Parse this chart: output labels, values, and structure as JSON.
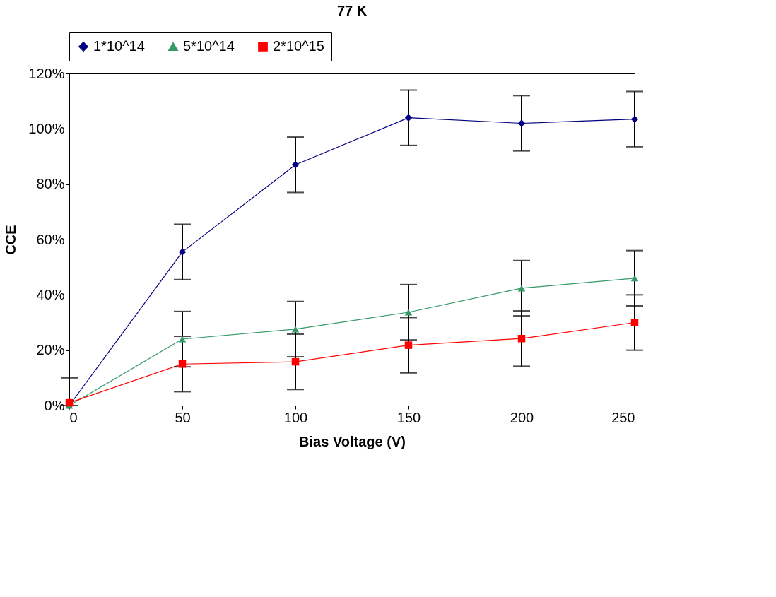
{
  "chart_data": {
    "type": "line",
    "title": "77 K",
    "xlabel": "Bias Voltage (V)",
    "ylabel": "CCE",
    "x": [
      0,
      50,
      100,
      150,
      200,
      250
    ],
    "series": [
      {
        "name": "1*10^14",
        "color": "#000080",
        "marker": "diamond",
        "values": [
          0,
          55.5,
          87,
          104,
          102,
          103.5
        ],
        "errors": [
          [
            0,
            10
          ],
          10,
          10,
          10,
          10,
          10
        ]
      },
      {
        "name": "5*10^14",
        "color": "#339966",
        "marker": "triangle",
        "values": [
          0,
          24,
          27.6,
          33.7,
          42.4,
          46
        ],
        "errors": [
          null,
          10,
          10,
          10,
          10,
          10
        ]
      },
      {
        "name": "2*10^15",
        "color": "#ff0000",
        "marker": "square",
        "values": [
          1,
          15,
          15.8,
          21.8,
          24.2,
          30
        ],
        "errors": [
          null,
          10,
          10,
          10,
          10,
          10
        ]
      }
    ],
    "xlim": [
      0,
      250
    ],
    "xticks": [
      0,
      50,
      100,
      150,
      200,
      250
    ],
    "ylim": [
      0,
      120
    ],
    "yticks": [
      {
        "value": 0,
        "label": "0%"
      },
      {
        "value": 20,
        "label": "20%"
      },
      {
        "value": 40,
        "label": "40%"
      },
      {
        "value": 60,
        "label": "60%"
      },
      {
        "value": 80,
        "label": "80%"
      },
      {
        "value": 100,
        "label": "100%"
      },
      {
        "value": 120,
        "label": "120%"
      }
    ],
    "grid": false,
    "legend": "top",
    "line_style": "solid"
  }
}
